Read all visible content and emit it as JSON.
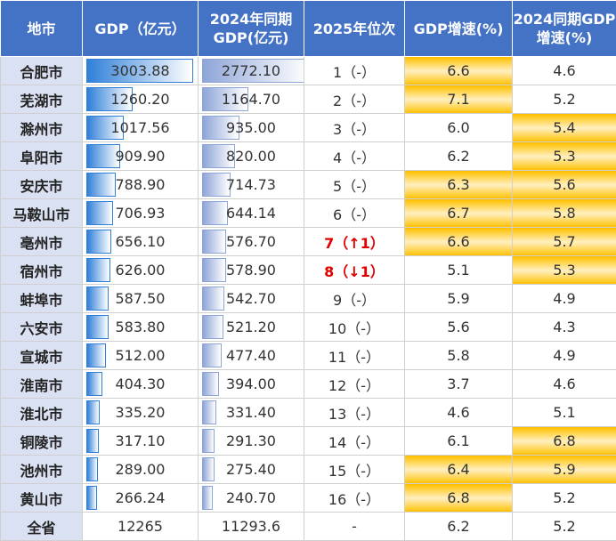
{
  "table": {
    "headers": [
      "地市",
      "GDP（亿元）",
      "2024年同期\nGDP(亿元)",
      "2025年位次",
      "GDP增速(%)",
      "2024同期GDP\n增速(%)"
    ],
    "rows": [
      [
        "合肥市",
        "3003.88",
        "2772.10",
        "1（-）",
        "6.6",
        "4.6"
      ],
      [
        "芜湖市",
        "1260.20",
        "1164.70",
        "2（-）",
        "7.1",
        "5.2"
      ],
      [
        "滁州市",
        "1017.56",
        "935.00",
        "3（-）",
        "6.0",
        "5.4"
      ],
      [
        "阜阳市",
        "909.90",
        "820.00",
        "4（-）",
        "6.2",
        "5.3"
      ],
      [
        "安庆市",
        "788.90",
        "714.73",
        "5（-）",
        "6.3",
        "5.6"
      ],
      [
        "马鞍山市",
        "706.93",
        "644.14",
        "6（-）",
        "6.7",
        "5.8"
      ],
      [
        "亳州市",
        "656.10",
        "576.70",
        "7（↑1）",
        "6.6",
        "5.7"
      ],
      [
        "宿州市",
        "626.00",
        "578.90",
        "8（↓1）",
        "5.1",
        "5.3"
      ],
      [
        "蚌埠市",
        "587.50",
        "542.70",
        "9（-）",
        "5.9",
        "4.9"
      ],
      [
        "六安市",
        "583.80",
        "521.20",
        "10（-）",
        "5.6",
        "4.3"
      ],
      [
        "宣城市",
        "512.00",
        "477.40",
        "11（-）",
        "5.8",
        "4.9"
      ],
      [
        "淮南市",
        "404.30",
        "394.00",
        "12（-）",
        "3.7",
        "4.6"
      ],
      [
        "淮北市",
        "335.20",
        "331.40",
        "13（-）",
        "4.6",
        "5.1"
      ],
      [
        "铜陵市",
        "317.10",
        "291.30",
        "14（-）",
        "6.1",
        "6.8"
      ],
      [
        "池州市",
        "289.00",
        "275.40",
        "15（-）",
        "6.4",
        "5.9"
      ],
      [
        "黄山市",
        "266.24",
        "240.70",
        "16（-）",
        "6.8",
        "5.2"
      ]
    ],
    "total": [
      "全省",
      "12265",
      "11293.6",
      "-",
      "6.2",
      "5.2"
    ]
  },
  "rank_red": [
    false,
    false,
    false,
    false,
    false,
    false,
    true,
    true,
    false,
    false,
    false,
    false,
    false,
    false,
    false,
    false
  ],
  "growth_highlight": [
    true,
    true,
    false,
    false,
    true,
    true,
    true,
    false,
    false,
    false,
    false,
    false,
    false,
    false,
    true,
    true
  ],
  "growth_2024_highlight": [
    false,
    false,
    true,
    true,
    true,
    true,
    true,
    true,
    false,
    false,
    false,
    false,
    false,
    true,
    true,
    false
  ],
  "header_color": "#4472c4",
  "city_color": "#d9e1f2",
  "gdp_bar_color": "#2f7fd8",
  "gdp_2024_bar_color": "#8ea5d8",
  "highlight_color": "#ffc000",
  "rank_red_color": "#e00000"
}
